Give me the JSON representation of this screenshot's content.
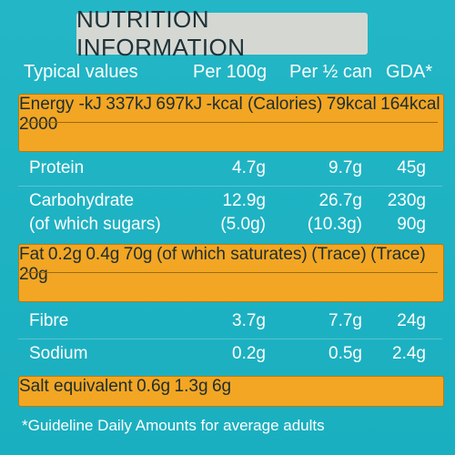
{
  "title": "NUTRITION INFORMATION",
  "header": {
    "typical": "Typical values",
    "per100": "Per 100g",
    "perHalf": "Per ½ can",
    "gda": "GDA*"
  },
  "rows": {
    "energy_kj": {
      "label": "Energy -kJ",
      "per100": "337kJ",
      "perHalf": "697kJ",
      "gda": ""
    },
    "energy_kcal": {
      "label": "-kcal (Calories)",
      "per100": "79kcal",
      "perHalf": "164kcal",
      "gda": "2000"
    },
    "protein": {
      "label": "Protein",
      "per100": "4.7g",
      "perHalf": "9.7g",
      "gda": "45g"
    },
    "carb": {
      "label": "Carbohydrate",
      "per100": "12.9g",
      "perHalf": "26.7g",
      "gda": "230g"
    },
    "sugars": {
      "label": "(of which sugars)",
      "per100": "(5.0g)",
      "perHalf": "(10.3g)",
      "gda": "90g"
    },
    "fat": {
      "label": "Fat",
      "per100": "0.2g",
      "perHalf": "0.4g",
      "gda": "70g"
    },
    "saturates": {
      "label": "(of which saturates)",
      "per100": "(Trace)",
      "perHalf": "(Trace)",
      "gda": "20g"
    },
    "fibre": {
      "label": "Fibre",
      "per100": "3.7g",
      "perHalf": "7.7g",
      "gda": "24g"
    },
    "sodium": {
      "label": "Sodium",
      "per100": "0.2g",
      "perHalf": "0.5g",
      "gda": "2.4g"
    },
    "salt": {
      "label": "Salt equivalent",
      "per100": "0.6g",
      "perHalf": "1.3g",
      "gda": "6g"
    }
  },
  "footnote": "*Guideline Daily Amounts for average adults",
  "colors": {
    "background": "#1fb3c4",
    "highlight": "#f2a623",
    "titleBar": "#d5d8d2"
  }
}
